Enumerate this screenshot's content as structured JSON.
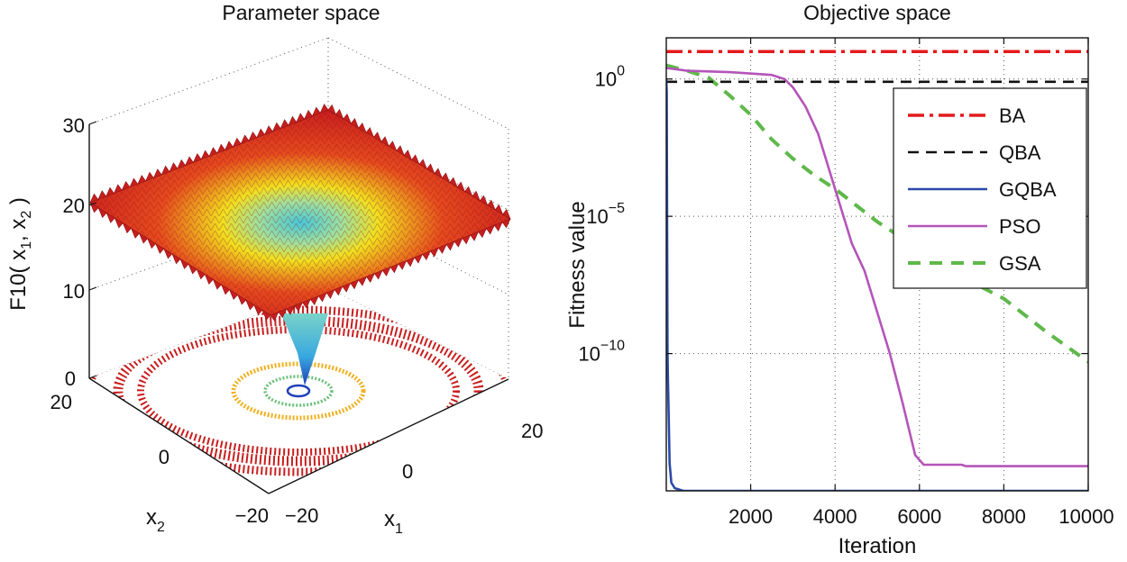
{
  "chart_data": [
    {
      "type": "surface",
      "title": "Parameter space",
      "zlabel_main": "F10( x",
      "zlabel_sub1": "1",
      "zlabel_mid": ", x",
      "zlabel_sub2": "2",
      "zlabel_end": " )",
      "xlabel_main": "x",
      "xlabel_sub": "1",
      "ylabel_main": "x",
      "ylabel_sub": "2",
      "z_ticks": [
        "0",
        "10",
        "20",
        "30"
      ],
      "x1_ticks": [
        "−20",
        "0",
        "20"
      ],
      "x2_ticks": [
        "−20",
        "0",
        "20"
      ],
      "zlim": [
        0,
        30
      ],
      "x1lim": [
        -20,
        20
      ],
      "x2lim": [
        -20,
        20
      ],
      "colors": {
        "low": "#1f3fb8",
        "mid": "#46c8d8",
        "high_mid": "#f0e020",
        "high": "#d81e1e"
      }
    },
    {
      "type": "line",
      "title": "Objective space",
      "xlabel": "Iteration",
      "ylabel": "Fitness value",
      "xlim": [
        0,
        10000
      ],
      "yscale": "log",
      "ylim_exp": [
        -15,
        1.5
      ],
      "x_ticks": [
        "2000",
        "4000",
        "6000",
        "8000",
        "10000"
      ],
      "y_ticks": [
        {
          "base": "10",
          "exp": "0"
        },
        {
          "base": "10",
          "exp": "−5"
        },
        {
          "base": "10",
          "exp": "−10"
        }
      ],
      "legend_position": "top-right",
      "series": [
        {
          "name": "BA",
          "color": "#e41a1c",
          "dash": "18 6 4 6",
          "points": [
            [
              0,
              1.0
            ],
            [
              10000,
              1.0
            ]
          ]
        },
        {
          "name": "QBA",
          "color": "#111111",
          "dash": "12 8",
          "points": [
            [
              0,
              -0.1
            ],
            [
              10000,
              -0.1
            ]
          ]
        },
        {
          "name": "GQBA",
          "color": "#2b4aa8",
          "dash": "",
          "points": [
            [
              0,
              0.0
            ],
            [
              10,
              -0.5
            ],
            [
              20,
              -5
            ],
            [
              30,
              -10
            ],
            [
              40,
              -11
            ],
            [
              60,
              -12.5
            ],
            [
              80,
              -14
            ],
            [
              120,
              -14.7
            ],
            [
              200,
              -14.9
            ],
            [
              400,
              -15
            ],
            [
              10000,
              -15
            ]
          ]
        },
        {
          "name": "PSO",
          "color": "#b455b9",
          "dash": "",
          "points": [
            [
              0,
              0.4
            ],
            [
              500,
              0.3
            ],
            [
              1500,
              0.25
            ],
            [
              2500,
              0.15
            ],
            [
              2800,
              0.0
            ],
            [
              3000,
              -0.3
            ],
            [
              3300,
              -1
            ],
            [
              3600,
              -2
            ],
            [
              4000,
              -4
            ],
            [
              4400,
              -6
            ],
            [
              4700,
              -7
            ],
            [
              5000,
              -8.5
            ],
            [
              5300,
              -10
            ],
            [
              5600,
              -11.8
            ],
            [
              5900,
              -13.7
            ],
            [
              6100,
              -14.05
            ],
            [
              6500,
              -14.05
            ],
            [
              7000,
              -14.05
            ],
            [
              7100,
              -14.1
            ],
            [
              10000,
              -14.1
            ]
          ]
        },
        {
          "name": "GSA",
          "color": "#5fb84a",
          "dash": "14 10",
          "points": [
            [
              0,
              0.5
            ],
            [
              500,
              0.3
            ],
            [
              1000,
              0.05
            ],
            [
              1500,
              -0.6
            ],
            [
              2000,
              -1.3
            ],
            [
              2500,
              -2.2
            ],
            [
              3000,
              -2.9
            ],
            [
              3500,
              -3.5
            ],
            [
              4000,
              -4.0
            ],
            [
              4500,
              -4.6
            ],
            [
              5000,
              -5.2
            ],
            [
              6000,
              -6.2
            ],
            [
              7000,
              -7.2
            ],
            [
              8000,
              -8.0
            ],
            [
              9000,
              -9.2
            ],
            [
              10000,
              -10.3
            ]
          ]
        }
      ]
    }
  ]
}
